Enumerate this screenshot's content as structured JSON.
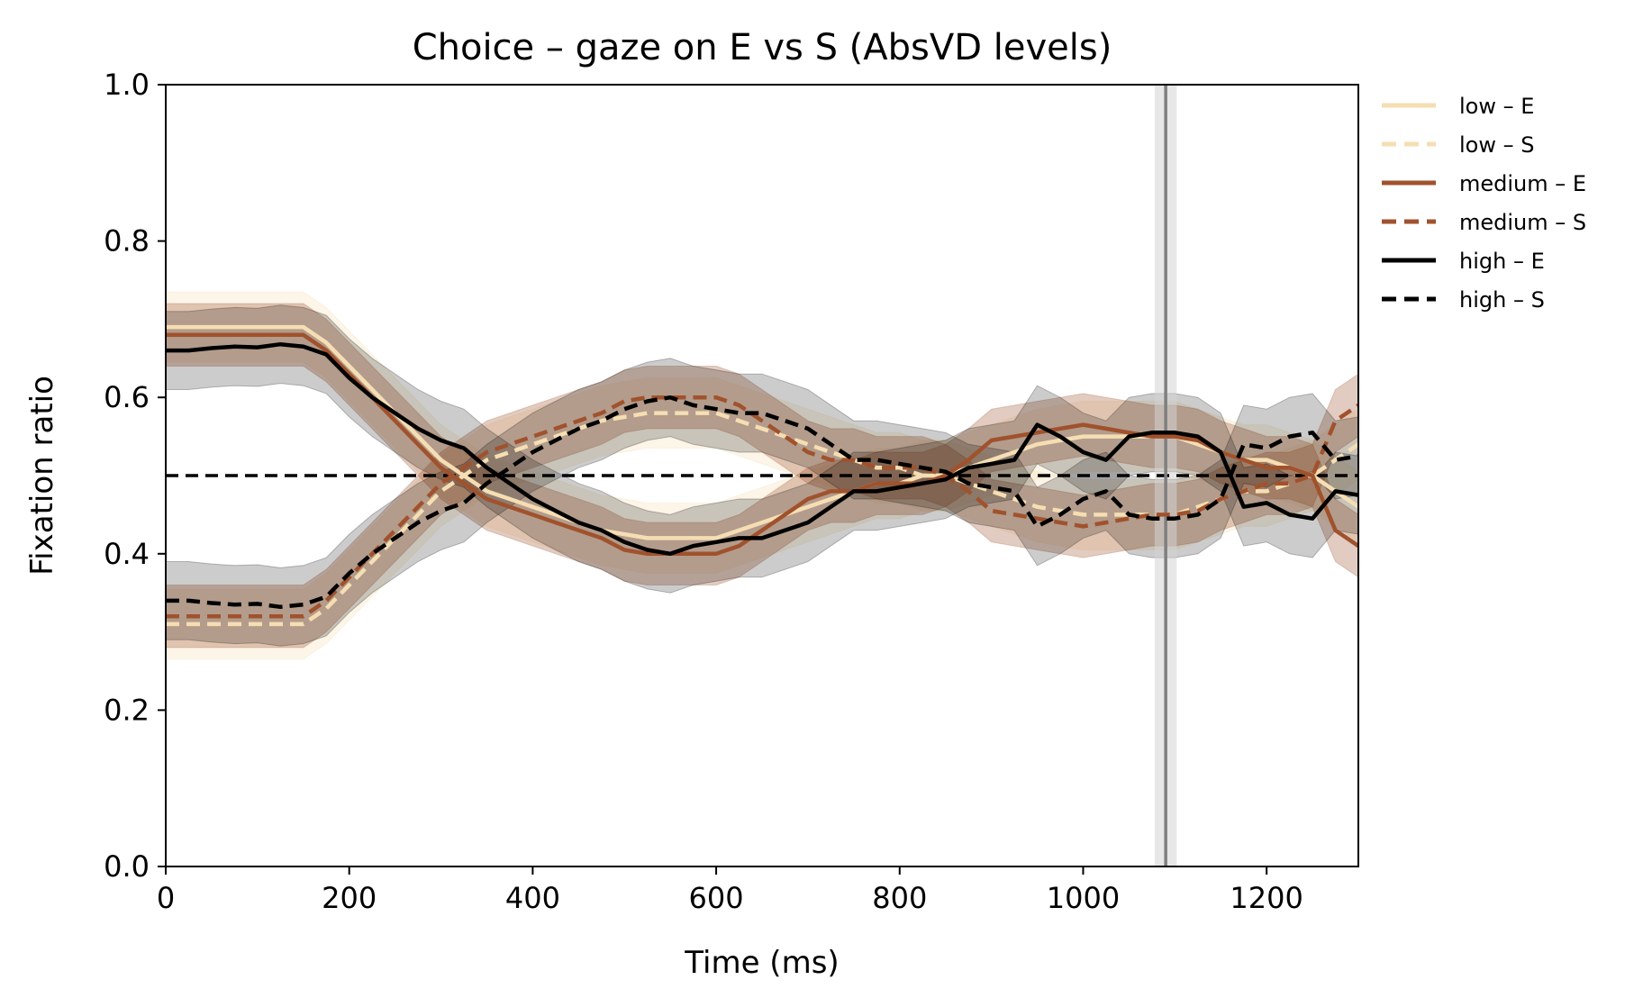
{
  "chart_data": {
    "type": "line",
    "title": "Choice – gaze on E vs S (AbsVD levels)",
    "xlabel": "Time (ms)",
    "ylabel": "Fixation ratio",
    "xlim": [
      0,
      1300
    ],
    "ylim": [
      0.0,
      1.0
    ],
    "xticks": [
      0,
      200,
      400,
      600,
      800,
      1000,
      1200
    ],
    "yticks": [
      0.0,
      0.2,
      0.4,
      0.6,
      0.8,
      1.0
    ],
    "xtick_labels": [
      "0",
      "200",
      "400",
      "600",
      "800",
      "1000",
      "1200"
    ],
    "ytick_labels": [
      "0.0",
      "0.2",
      "0.4",
      "0.6",
      "0.8",
      "1.0"
    ],
    "grid": false,
    "legend_position": "outside-right-top",
    "reference_lines": {
      "horizontal_y": 0.5,
      "vertical_x_dashed": 0,
      "vertical_x_solid": 1090,
      "vertical_band_halfwidth": 12
    },
    "x": [
      0,
      25,
      50,
      75,
      100,
      125,
      150,
      175,
      200,
      225,
      250,
      275,
      300,
      325,
      350,
      375,
      400,
      425,
      450,
      475,
      500,
      525,
      550,
      575,
      600,
      625,
      650,
      675,
      700,
      725,
      750,
      775,
      800,
      825,
      850,
      875,
      900,
      925,
      950,
      975,
      1000,
      1025,
      1050,
      1075,
      1100,
      1125,
      1150,
      1175,
      1200,
      1225,
      1250,
      1275,
      1300
    ],
    "series": [
      {
        "name": "low – E",
        "color": "#f5deb3",
        "dash": false,
        "band_halfwidth": 0.045,
        "values": [
          0.69,
          0.69,
          0.69,
          0.69,
          0.69,
          0.69,
          0.69,
          0.67,
          0.64,
          0.61,
          0.58,
          0.55,
          0.52,
          0.5,
          0.48,
          0.47,
          0.46,
          0.45,
          0.44,
          0.43,
          0.425,
          0.42,
          0.42,
          0.42,
          0.42,
          0.43,
          0.44,
          0.45,
          0.46,
          0.47,
          0.48,
          0.49,
          0.49,
          0.5,
          0.5,
          0.51,
          0.52,
          0.53,
          0.54,
          0.545,
          0.55,
          0.55,
          0.55,
          0.55,
          0.55,
          0.54,
          0.53,
          0.52,
          0.52,
          0.51,
          0.5,
          0.48,
          0.46
        ]
      },
      {
        "name": "low – S",
        "color": "#f5deb3",
        "dash": true,
        "band_halfwidth": 0.045,
        "values": [
          0.31,
          0.31,
          0.31,
          0.31,
          0.31,
          0.31,
          0.31,
          0.33,
          0.36,
          0.39,
          0.42,
          0.45,
          0.48,
          0.5,
          0.52,
          0.53,
          0.54,
          0.55,
          0.56,
          0.57,
          0.575,
          0.58,
          0.58,
          0.58,
          0.58,
          0.57,
          0.56,
          0.55,
          0.54,
          0.53,
          0.52,
          0.51,
          0.51,
          0.5,
          0.5,
          0.49,
          0.48,
          0.47,
          0.46,
          0.455,
          0.45,
          0.45,
          0.45,
          0.45,
          0.45,
          0.46,
          0.47,
          0.48,
          0.48,
          0.49,
          0.5,
          0.52,
          0.54
        ]
      },
      {
        "name": "medium – E",
        "color": "#a0522d",
        "dash": false,
        "band_halfwidth": 0.04,
        "values": [
          0.68,
          0.68,
          0.68,
          0.68,
          0.68,
          0.68,
          0.68,
          0.66,
          0.63,
          0.6,
          0.57,
          0.54,
          0.51,
          0.49,
          0.47,
          0.46,
          0.45,
          0.44,
          0.43,
          0.42,
          0.405,
          0.4,
          0.4,
          0.4,
          0.4,
          0.41,
          0.43,
          0.45,
          0.47,
          0.48,
          0.48,
          0.49,
          0.49,
          0.49,
          0.5,
          0.52,
          0.545,
          0.55,
          0.555,
          0.56,
          0.565,
          0.56,
          0.555,
          0.55,
          0.55,
          0.545,
          0.53,
          0.52,
          0.51,
          0.51,
          0.5,
          0.43,
          0.41
        ]
      },
      {
        "name": "medium – S",
        "color": "#a0522d",
        "dash": true,
        "band_halfwidth": 0.04,
        "values": [
          0.32,
          0.32,
          0.32,
          0.32,
          0.32,
          0.32,
          0.32,
          0.34,
          0.37,
          0.4,
          0.43,
          0.46,
          0.49,
          0.51,
          0.53,
          0.54,
          0.55,
          0.56,
          0.57,
          0.58,
          0.595,
          0.6,
          0.6,
          0.6,
          0.6,
          0.59,
          0.57,
          0.55,
          0.53,
          0.52,
          0.52,
          0.51,
          0.51,
          0.51,
          0.5,
          0.48,
          0.455,
          0.45,
          0.445,
          0.44,
          0.435,
          0.44,
          0.445,
          0.45,
          0.45,
          0.455,
          0.47,
          0.48,
          0.49,
          0.49,
          0.5,
          0.57,
          0.59
        ]
      },
      {
        "name": "high – E",
        "color": "#000000",
        "dash": false,
        "band_halfwidth": 0.05,
        "values": [
          0.66,
          0.66,
          0.663,
          0.665,
          0.664,
          0.668,
          0.665,
          0.655,
          0.625,
          0.6,
          0.58,
          0.56,
          0.545,
          0.535,
          0.51,
          0.49,
          0.47,
          0.455,
          0.44,
          0.43,
          0.415,
          0.405,
          0.4,
          0.41,
          0.415,
          0.42,
          0.42,
          0.43,
          0.44,
          0.46,
          0.48,
          0.48,
          0.485,
          0.49,
          0.495,
          0.51,
          0.515,
          0.52,
          0.565,
          0.55,
          0.53,
          0.52,
          0.55,
          0.555,
          0.555,
          0.55,
          0.53,
          0.46,
          0.465,
          0.45,
          0.445,
          0.48,
          0.475
        ]
      },
      {
        "name": "high – S",
        "color": "#000000",
        "dash": true,
        "band_halfwidth": 0.05,
        "values": [
          0.34,
          0.34,
          0.337,
          0.335,
          0.336,
          0.332,
          0.335,
          0.345,
          0.375,
          0.4,
          0.42,
          0.44,
          0.455,
          0.465,
          0.49,
          0.51,
          0.53,
          0.545,
          0.56,
          0.57,
          0.585,
          0.595,
          0.6,
          0.59,
          0.585,
          0.58,
          0.58,
          0.57,
          0.56,
          0.54,
          0.52,
          0.52,
          0.515,
          0.51,
          0.505,
          0.49,
          0.485,
          0.48,
          0.435,
          0.45,
          0.47,
          0.48,
          0.45,
          0.445,
          0.445,
          0.45,
          0.47,
          0.54,
          0.535,
          0.55,
          0.555,
          0.52,
          0.525
        ]
      }
    ]
  }
}
